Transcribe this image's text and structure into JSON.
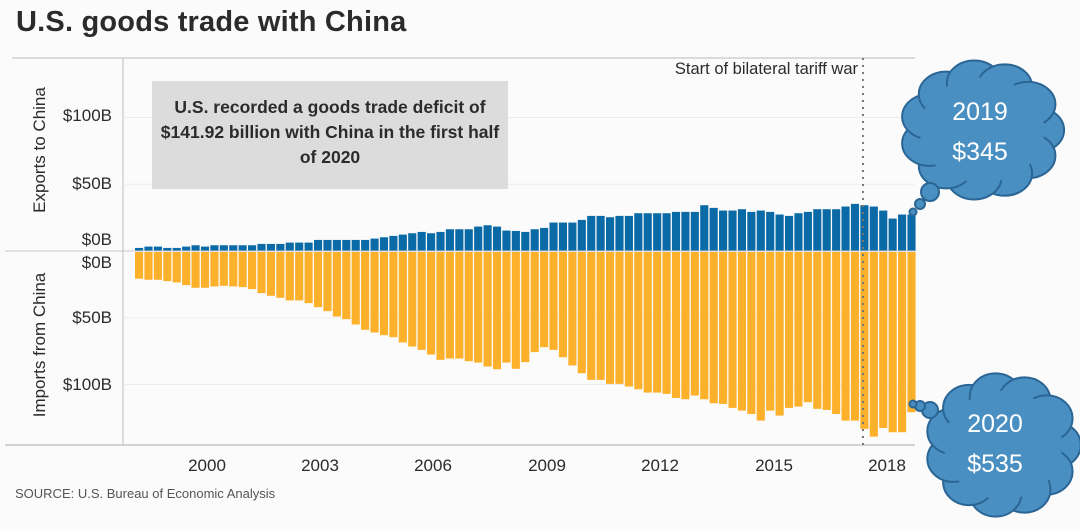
{
  "chart_data": {
    "type": "bar",
    "title": "U.S. goods trade with China",
    "categories_note_free": true,
    "categories": [
      "1998 Q2",
      "1998 Q3",
      "1998 Q4",
      "1999 Q1",
      "1999 Q2",
      "1999 Q3",
      "1999 Q4",
      "2000 Q1",
      "2000 Q2",
      "2000 Q3",
      "2000 Q4",
      "2001 Q1",
      "2001 Q2",
      "2001 Q3",
      "2001 Q4",
      "2002 Q1",
      "2002 Q2",
      "2002 Q3",
      "2002 Q4",
      "2003 Q1",
      "2003 Q2",
      "2003 Q3",
      "2003 Q4",
      "2004 Q1",
      "2004 Q2",
      "2004 Q3",
      "2004 Q4",
      "2005 Q1",
      "2005 Q2",
      "2005 Q3",
      "2005 Q4",
      "2006 Q1",
      "2006 Q2",
      "2006 Q3",
      "2006 Q4",
      "2007 Q1",
      "2007 Q2",
      "2007 Q3",
      "2007 Q4",
      "2008 Q1",
      "2008 Q2",
      "2008 Q3",
      "2008 Q4",
      "2009 Q1",
      "2009 Q2",
      "2009 Q3",
      "2009 Q4",
      "2010 Q1",
      "2010 Q2",
      "2010 Q3",
      "2010 Q4",
      "2011 Q1",
      "2011 Q2",
      "2011 Q3",
      "2011 Q4",
      "2012 Q1",
      "2012 Q2",
      "2012 Q3",
      "2012 Q4",
      "2013 Q1",
      "2013 Q2",
      "2013 Q3",
      "2013 Q4",
      "2014 Q1",
      "2014 Q2",
      "2014 Q3",
      "2014 Q4",
      "2015 Q1",
      "2015 Q2",
      "2015 Q3",
      "2015 Q4",
      "2016 Q1",
      "2016 Q2",
      "2016 Q3",
      "2016 Q4",
      "2017 Q1",
      "2017 Q2",
      "2017 Q3",
      "2017 Q4",
      "2018 Q1",
      "2018 Q2",
      "2018 Q3",
      "2018 Q4"
    ],
    "series": [
      {
        "name": "Exports to China",
        "color": "#0a6aa6",
        "values": [
          2.3,
          3.3,
          3.3,
          2.3,
          2.3,
          3.3,
          4.3,
          3.3,
          4.3,
          4.3,
          4.3,
          4.3,
          4.3,
          5.3,
          5.3,
          5.3,
          6.3,
          6.3,
          6.3,
          8.3,
          8.3,
          8.3,
          8.3,
          8.3,
          8.3,
          9.3,
          10.3,
          11.3,
          12.3,
          13.3,
          14.3,
          13.3,
          14.3,
          16.3,
          16.3,
          16.3,
          18.3,
          19.3,
          18.3,
          15.3,
          15,
          14.3,
          16.3,
          17.3,
          21.3,
          21.3,
          21.3,
          23.3,
          26.3,
          26.3,
          25.3,
          26.3,
          26.3,
          28.3,
          28.3,
          28.3,
          28.3,
          29.3,
          29.3,
          29.3,
          34.3,
          32.3,
          30.3,
          30.3,
          31.3,
          29.3,
          30.3,
          29.3,
          27.3,
          26.3,
          28.3,
          29.3,
          31.3,
          31.3,
          31.3,
          33.3,
          35.3,
          34.3,
          33.3,
          30.3,
          24.3,
          27.3,
          27.3
        ]
      },
      {
        "name": "Imports from China",
        "color": "#fdb02a",
        "values": [
          20,
          20.8,
          20.8,
          21.8,
          22.8,
          24.8,
          26.8,
          26.8,
          25.8,
          25.3,
          25.8,
          26.3,
          27.8,
          30.8,
          32.8,
          34.3,
          36.3,
          36.3,
          38.3,
          41.3,
          44.3,
          48.3,
          50.3,
          54.3,
          58.3,
          60.3,
          62.3,
          63.8,
          67.8,
          70.8,
          73.3,
          76.8,
          80.8,
          79.8,
          79.8,
          81.8,
          82.8,
          85.8,
          87.8,
          82.8,
          87.5,
          82.5,
          75,
          71.3,
          73.3,
          78.8,
          85,
          90.8,
          95.8,
          95.8,
          98.8,
          98.8,
          100.8,
          102.8,
          105.3,
          105.3,
          106.3,
          109.3,
          110.3,
          107.5,
          110.3,
          113.3,
          113.8,
          116.8,
          118.8,
          121.3,
          126.3,
          118.8,
          122.5,
          116.8,
          115.8,
          112.5,
          117.5,
          118.3,
          121.3,
          126.3,
          126.3,
          132.5,
          138.3,
          131.8,
          135,
          135,
          120
        ]
      }
    ],
    "ylabel_top": "Exports to China",
    "ylabel_bottom": "Imports from China",
    "y_ticks_top": [
      "$100B",
      "$50B",
      "$0B"
    ],
    "y_ticks_bottom": [
      "$0B",
      "$50B",
      "$100B"
    ],
    "x_ticks": [
      "2000",
      "2003",
      "2006",
      "2009",
      "2012",
      "2015",
      "2018"
    ],
    "ylim": [
      -145,
      140
    ],
    "grid": true,
    "annotations": {
      "note": "U.S. recorded a goods trade deficit of $141.92 billion with China in the first half of 2020",
      "tariff_line": "Start of bilateral tariff war"
    },
    "source": "SOURCE: U.S. Bureau of Economic Analysis"
  },
  "callouts": [
    {
      "year": "2019",
      "value": "$345"
    },
    {
      "year": "2020",
      "value": "$535"
    }
  ],
  "colors": {
    "cloud_fill": "#4a8fc2",
    "cloud_stroke": "#2a6594",
    "note_bg": "#dddcdc"
  }
}
